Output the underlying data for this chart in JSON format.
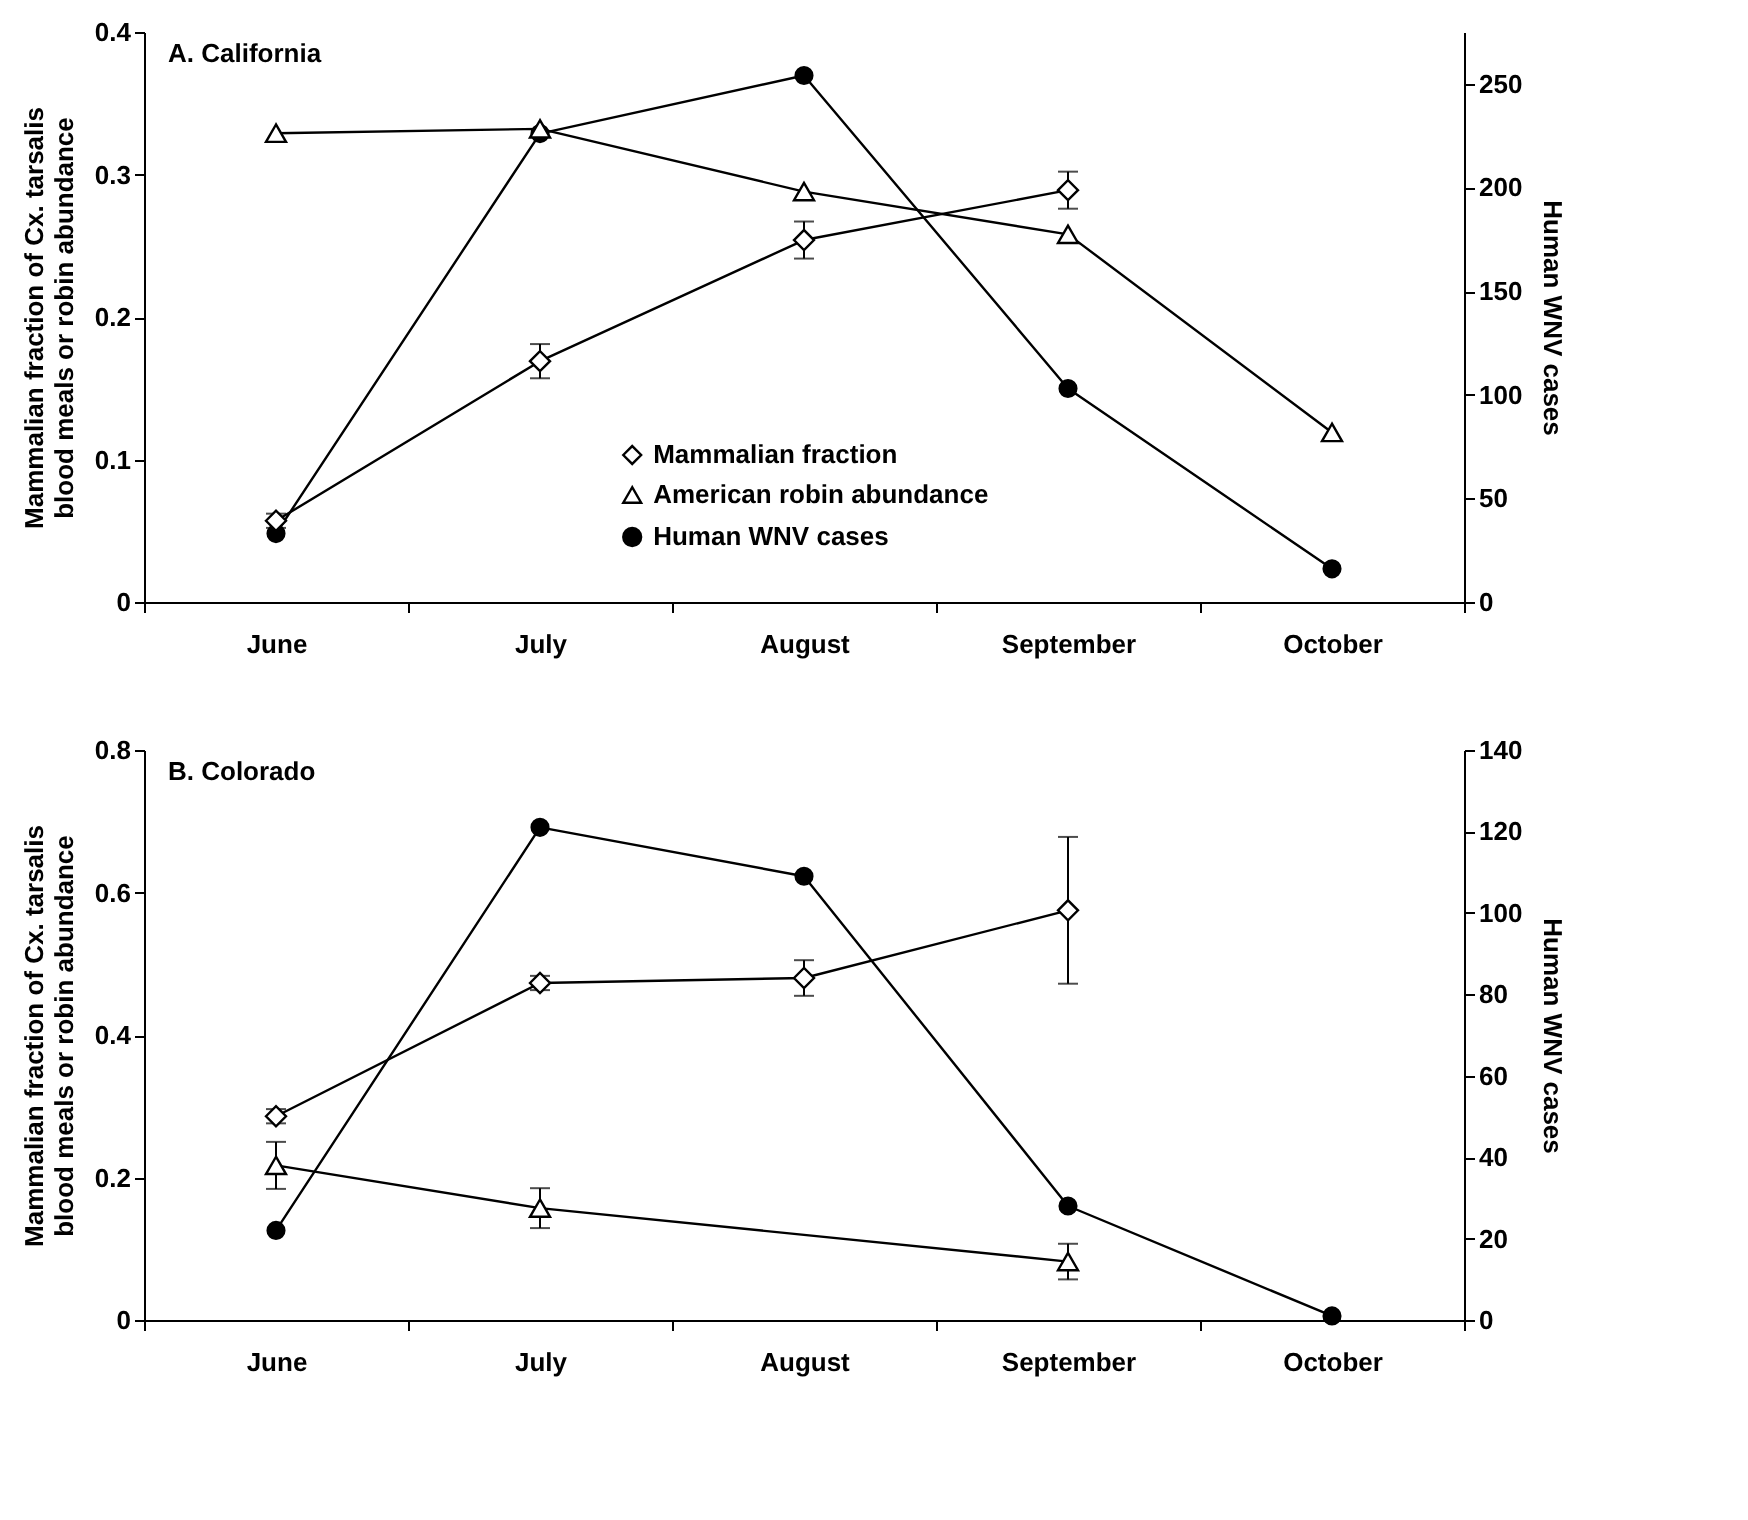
{
  "chart_data": [
    {
      "type": "line",
      "title": "A. California",
      "categories": [
        "June",
        "July",
        "August",
        "September",
        "October"
      ],
      "ylabel": "Mammalian fraction of Cx. tarsalis\nblood meals or robin abundance",
      "y2label": "Human WNV cases",
      "ylim": [
        0,
        0.4
      ],
      "yticks": [
        0,
        0.1,
        0.2,
        0.3,
        0.4
      ],
      "y2lim": [
        0,
        275
      ],
      "y2ticks": [
        0,
        50,
        100,
        150,
        200,
        250
      ],
      "legend": "bottom",
      "grid": false,
      "line_style": "solid",
      "series": [
        {
          "name": "Mammalian fraction",
          "color": "#000000",
          "marker": "diamond",
          "values": [
            0.057,
            0.169,
            0.254,
            0.289,
            null
          ],
          "errors": [
            0.005,
            0.012,
            0.013,
            0.013,
            null
          ]
        },
        {
          "name": "American robin abundance",
          "color": "#000000",
          "marker": "triangle",
          "values": [
            0.329,
            0.332,
            0.288,
            0.258,
            0.119
          ]
        },
        {
          "name": "Human WNV cases",
          "color": "#000000",
          "marker": "circle",
          "axis": "y2",
          "values": [
            33,
            226,
            254,
            103,
            16
          ]
        }
      ]
    },
    {
      "type": "line",
      "title": "B. Colorado",
      "categories": [
        "June",
        "July",
        "August",
        "September",
        "October"
      ],
      "ylabel": "Mammalian fraction of Cx. tarsalis\nblood meals or robin abundance",
      "y2label": "Human WNV cases",
      "ylim": [
        0,
        0.8
      ],
      "yticks": [
        0,
        0.2,
        0.4,
        0.6,
        0.8
      ],
      "y2lim": [
        0,
        140
      ],
      "y2ticks": [
        0,
        20,
        40,
        60,
        80,
        100,
        120,
        140
      ],
      "legend": false,
      "grid": false,
      "line_style": "solid",
      "series": [
        {
          "color": "#000000",
          "marker": "diamond",
          "values": [
            0.286,
            0.473,
            0.48,
            0.575,
            null
          ],
          "errors": [
            0.01,
            0.01,
            0.025,
            0.103,
            null
          ]
        },
        {
          "color": "#000000",
          "marker": "triangle",
          "values": [
            0.217,
            0.157,
            null,
            0.082,
            null
          ],
          "errors": [
            0.033,
            0.028,
            null,
            0.025,
            null
          ]
        },
        {
          "color": "#000000",
          "marker": "circle",
          "axis": "y2",
          "values": [
            22,
            121,
            109,
            28,
            1
          ]
        }
      ]
    }
  ]
}
